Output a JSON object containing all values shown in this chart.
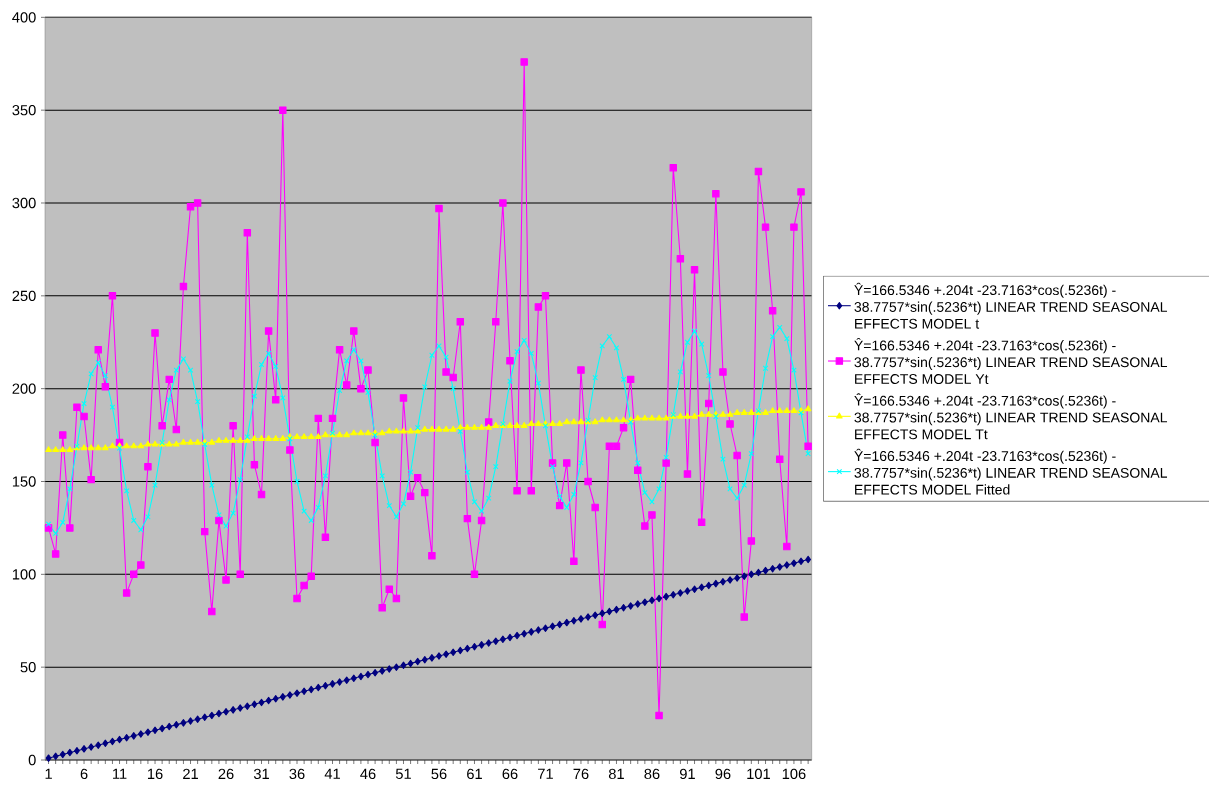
{
  "chart_data": {
    "type": "line",
    "categories": [
      "1",
      null,
      null,
      null,
      null,
      "6",
      null,
      null,
      null,
      null,
      "11",
      null,
      null,
      null,
      null,
      "16",
      null,
      null,
      null,
      null,
      "21",
      null,
      null,
      null,
      null,
      "26",
      null,
      null,
      null,
      null,
      "31",
      null,
      null,
      null,
      null,
      "36",
      null,
      null,
      null,
      null,
      "41",
      null,
      null,
      null,
      null,
      "46",
      null,
      null,
      null,
      null,
      "51",
      null,
      null,
      null,
      null,
      "56",
      null,
      null,
      null,
      null,
      "61",
      null,
      null,
      null,
      null,
      "66",
      null,
      null,
      null,
      null,
      "71",
      null,
      null,
      null,
      null,
      "76",
      null,
      null,
      null,
      null,
      "81",
      null,
      null,
      null,
      null,
      "86",
      null,
      null,
      null,
      null,
      "91",
      null,
      null,
      null,
      null,
      "96",
      null,
      null,
      null,
      null,
      "101",
      null,
      null,
      null,
      null,
      "106",
      null,
      null
    ],
    "series": [
      {
        "name": "Ŷ=166.5346 +.204t -23.7163*cos(.5236t) - 38.7757*sin(.5236*t) LINEAR TREND SEASONAL EFFECTS MODEL t",
        "color": "#000080",
        "marker": "diamond",
        "values": [
          1,
          2,
          3,
          4,
          5,
          6,
          7,
          8,
          9,
          10,
          11,
          12,
          13,
          14,
          15,
          16,
          17,
          18,
          19,
          20,
          21,
          22,
          23,
          24,
          25,
          26,
          27,
          28,
          29,
          30,
          31,
          32,
          33,
          34,
          35,
          36,
          37,
          38,
          39,
          40,
          41,
          42,
          43,
          44,
          45,
          46,
          47,
          48,
          49,
          50,
          51,
          52,
          53,
          54,
          55,
          56,
          57,
          58,
          59,
          60,
          61,
          62,
          63,
          64,
          65,
          66,
          67,
          68,
          69,
          70,
          71,
          72,
          73,
          74,
          75,
          76,
          77,
          78,
          79,
          80,
          81,
          82,
          83,
          84,
          85,
          86,
          87,
          88,
          89,
          90,
          91,
          92,
          93,
          94,
          95,
          96,
          97,
          98,
          99,
          100,
          101,
          102,
          103,
          104,
          105,
          106,
          107,
          108
        ]
      },
      {
        "name": "Ŷ=166.5346 +.204t -23.7163*cos(.5236t) - 38.7757*sin(.5236*t) LINEAR TREND SEASONAL EFFECTS MODEL Yt",
        "color": "#ff00ff",
        "marker": "square",
        "values": [
          125,
          111,
          175,
          125,
          190,
          185,
          151,
          221,
          201,
          250,
          171,
          90,
          100,
          105,
          158,
          230,
          180,
          205,
          178,
          255,
          298,
          300,
          123,
          80,
          129,
          97,
          180,
          100,
          284,
          159,
          143,
          231,
          194,
          350,
          167,
          87,
          94,
          99,
          184,
          120,
          184,
          221,
          202,
          231,
          200,
          210,
          171,
          82,
          92,
          87,
          195,
          142,
          152,
          144,
          110,
          297,
          209,
          206,
          236,
          130,
          100,
          129,
          182,
          236,
          300,
          215,
          145,
          376,
          145,
          244,
          250,
          160,
          137,
          160,
          107,
          210,
          150,
          136,
          73,
          169,
          169,
          179,
          205,
          156,
          126,
          132,
          24,
          160,
          319,
          270,
          154,
          264,
          128,
          192,
          305,
          209,
          181,
          164,
          77,
          118,
          317,
          287,
          242,
          162,
          115,
          287,
          306,
          169
        ]
      },
      {
        "name": "Ŷ=166.5346 +.204t -23.7163*cos(.5236t) - 38.7757*sin(.5236*t) LINEAR TREND SEASONAL EFFECTS MODEL Tt",
        "color": "#ffff00",
        "marker": "triangle",
        "values": [
          167,
          167,
          167,
          167,
          168,
          168,
          168,
          168,
          168,
          169,
          169,
          169,
          169,
          169,
          170,
          170,
          170,
          170,
          170,
          171,
          171,
          171,
          171,
          171,
          172,
          172,
          172,
          172,
          172,
          173,
          173,
          173,
          173,
          173,
          174,
          174,
          174,
          174,
          174,
          175,
          175,
          175,
          175,
          176,
          176,
          176,
          176,
          176,
          177,
          177,
          177,
          177,
          177,
          178,
          178,
          178,
          178,
          178,
          179,
          179,
          179,
          179,
          179,
          180,
          180,
          180,
          180,
          180,
          181,
          181,
          181,
          181,
          181,
          182,
          182,
          182,
          182,
          182,
          183,
          183,
          183,
          183,
          183,
          184,
          184,
          184,
          184,
          184,
          185,
          185,
          185,
          185,
          186,
          186,
          186,
          186,
          186,
          187,
          187,
          187,
          187,
          187,
          188,
          188,
          188,
          188,
          188,
          189
        ]
      },
      {
        "name": "Ŷ=166.5346 +.204t -23.7163*cos(.5236t) - 38.7757*sin(.5236*t) LINEAR TREND SEASONAL EFFECTS MODEL Fitted",
        "color": "#00ffff",
        "marker": "cross",
        "values": [
          127,
          122,
          128,
          146,
          169,
          192,
          208,
          214,
          207,
          190,
          168,
          145,
          129,
          124,
          131,
          148,
          171,
          194,
          210,
          216,
          210,
          193,
          170,
          148,
          132,
          126,
          133,
          151,
          174,
          196,
          213,
          219,
          212,
          195,
          173,
          150,
          134,
          129,
          136,
          153,
          176,
          199,
          215,
          221,
          215,
          198,
          175,
          153,
          137,
          131,
          138,
          155,
          179,
          201,
          218,
          223,
          217,
          200,
          177,
          155,
          139,
          134,
          141,
          158,
          181,
          204,
          220,
          226,
          219,
          203,
          180,
          158,
          142,
          136,
          143,
          160,
          183,
          206,
          223,
          228,
          222,
          205,
          182,
          160,
          144,
          139,
          146,
          163,
          186,
          209,
          225,
          231,
          224,
          207,
          185,
          162,
          146,
          141,
          148,
          165,
          188,
          211,
          228,
          233,
          227,
          210,
          187,
          165
        ]
      }
    ],
    "ylim": [
      0,
      400
    ],
    "yticks": [
      0,
      50,
      100,
      150,
      200,
      250,
      300,
      350,
      400
    ],
    "grid": "y",
    "legend": "right"
  }
}
